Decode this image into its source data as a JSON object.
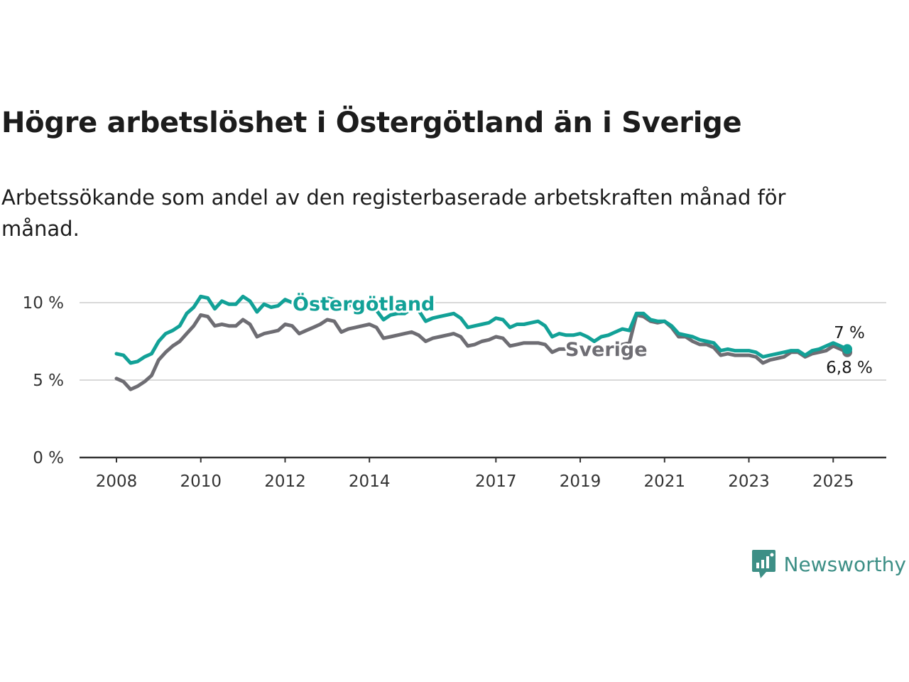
{
  "title": "Högre arbetslöshet i Östergötland än i Sverige",
  "subtitle": "Arbetssökande som andel av den registerbaserade arbetskraften månad för månad.",
  "brand": {
    "name": "Newsworthy",
    "icon": "newsworthy-logo-icon"
  },
  "colors": {
    "ostergotland": "#12a197",
    "sverige": "#6e6d73",
    "grid": "#d9d9d9",
    "axis": "#333333",
    "brand": "#3d8f86"
  },
  "chart_data": {
    "type": "line",
    "title": "Högre arbetslöshet i Östergötland än i Sverige",
    "subtitle": "Arbetssökande som andel av den registerbaserade arbetskraften månad för månad.",
    "xlabel": "",
    "ylabel": "",
    "y_unit": "%",
    "xlim": [
      "2008-01",
      "2025-06"
    ],
    "ylim": [
      0,
      10
    ],
    "y_ticks": [
      {
        "value": 0,
        "label": "0 %"
      },
      {
        "value": 5,
        "label": "5 %"
      },
      {
        "value": 10,
        "label": "10 %"
      }
    ],
    "x_ticks": [
      {
        "value": "2008-01",
        "label": "2008"
      },
      {
        "value": "2010-01",
        "label": "2010"
      },
      {
        "value": "2012-01",
        "label": "2012"
      },
      {
        "value": "2014-01",
        "label": "2014"
      },
      {
        "value": "2017-01",
        "label": "2017"
      },
      {
        "value": "2019-01",
        "label": "2019"
      },
      {
        "value": "2021-01",
        "label": "2021"
      },
      {
        "value": "2023-01",
        "label": "2023"
      },
      {
        "value": "2025-01",
        "label": "2025"
      }
    ],
    "grid": true,
    "legend": "inline labels",
    "series": [
      {
        "name": "Östergötland",
        "color": "#12a197",
        "end_label": "7 %",
        "points": [
          [
            "2008-01",
            6.7
          ],
          [
            "2008-03",
            6.6
          ],
          [
            "2008-05",
            6.1
          ],
          [
            "2008-07",
            6.2
          ],
          [
            "2008-09",
            6.5
          ],
          [
            "2008-11",
            6.7
          ],
          [
            "2009-01",
            7.5
          ],
          [
            "2009-03",
            8.0
          ],
          [
            "2009-05",
            8.2
          ],
          [
            "2009-07",
            8.5
          ],
          [
            "2009-09",
            9.3
          ],
          [
            "2009-11",
            9.7
          ],
          [
            "2010-01",
            10.4
          ],
          [
            "2010-03",
            10.3
          ],
          [
            "2010-05",
            9.6
          ],
          [
            "2010-07",
            10.1
          ],
          [
            "2010-09",
            9.9
          ],
          [
            "2010-11",
            9.9
          ],
          [
            "2011-01",
            10.4
          ],
          [
            "2011-03",
            10.1
          ],
          [
            "2011-05",
            9.4
          ],
          [
            "2011-07",
            9.9
          ],
          [
            "2011-09",
            9.7
          ],
          [
            "2011-11",
            9.8
          ],
          [
            "2012-01",
            10.2
          ],
          [
            "2012-03",
            10.0
          ],
          [
            "2012-05",
            9.6
          ],
          [
            "2012-07",
            9.7
          ],
          [
            "2012-09",
            9.9
          ],
          [
            "2012-11",
            10.0
          ],
          [
            "2013-01",
            10.3
          ],
          [
            "2013-03",
            10.2
          ],
          [
            "2013-05",
            9.6
          ],
          [
            "2013-07",
            9.8
          ],
          [
            "2013-09",
            9.9
          ],
          [
            "2013-11",
            9.8
          ],
          [
            "2014-01",
            9.9
          ],
          [
            "2014-03",
            9.5
          ],
          [
            "2014-05",
            8.9
          ],
          [
            "2014-07",
            9.2
          ],
          [
            "2014-09",
            9.3
          ],
          [
            "2014-11",
            9.3
          ],
          [
            "2015-01",
            9.6
          ],
          [
            "2015-03",
            9.5
          ],
          [
            "2015-05",
            8.8
          ],
          [
            "2015-07",
            9.0
          ],
          [
            "2015-09",
            9.1
          ],
          [
            "2015-11",
            9.2
          ],
          [
            "2016-01",
            9.3
          ],
          [
            "2016-03",
            9.0
          ],
          [
            "2016-05",
            8.4
          ],
          [
            "2016-07",
            8.5
          ],
          [
            "2016-09",
            8.6
          ],
          [
            "2016-11",
            8.7
          ],
          [
            "2017-01",
            9.0
          ],
          [
            "2017-03",
            8.9
          ],
          [
            "2017-05",
            8.4
          ],
          [
            "2017-07",
            8.6
          ],
          [
            "2017-09",
            8.6
          ],
          [
            "2017-11",
            8.7
          ],
          [
            "2018-01",
            8.8
          ],
          [
            "2018-03",
            8.5
          ],
          [
            "2018-05",
            7.8
          ],
          [
            "2018-07",
            8.0
          ],
          [
            "2018-09",
            7.9
          ],
          [
            "2018-11",
            7.9
          ],
          [
            "2019-01",
            8.0
          ],
          [
            "2019-03",
            7.8
          ],
          [
            "2019-05",
            7.5
          ],
          [
            "2019-07",
            7.8
          ],
          [
            "2019-09",
            7.9
          ],
          [
            "2019-11",
            8.1
          ],
          [
            "2020-01",
            8.3
          ],
          [
            "2020-03",
            8.2
          ],
          [
            "2020-05",
            9.3
          ],
          [
            "2020-07",
            9.3
          ],
          [
            "2020-09",
            8.9
          ],
          [
            "2020-11",
            8.8
          ],
          [
            "2021-01",
            8.8
          ],
          [
            "2021-03",
            8.5
          ],
          [
            "2021-05",
            8.0
          ],
          [
            "2021-07",
            7.9
          ],
          [
            "2021-09",
            7.8
          ],
          [
            "2021-11",
            7.6
          ],
          [
            "2022-01",
            7.5
          ],
          [
            "2022-03",
            7.4
          ],
          [
            "2022-05",
            6.9
          ],
          [
            "2022-07",
            7.0
          ],
          [
            "2022-09",
            6.9
          ],
          [
            "2022-11",
            6.9
          ],
          [
            "2023-01",
            6.9
          ],
          [
            "2023-03",
            6.8
          ],
          [
            "2023-05",
            6.5
          ],
          [
            "2023-07",
            6.6
          ],
          [
            "2023-09",
            6.7
          ],
          [
            "2023-11",
            6.8
          ],
          [
            "2024-01",
            6.9
          ],
          [
            "2024-03",
            6.9
          ],
          [
            "2024-05",
            6.6
          ],
          [
            "2024-07",
            6.9
          ],
          [
            "2024-09",
            7.0
          ],
          [
            "2024-11",
            7.2
          ],
          [
            "2025-01",
            7.4
          ],
          [
            "2025-03",
            7.2
          ],
          [
            "2025-05",
            7.0
          ]
        ]
      },
      {
        "name": "Sverige",
        "color": "#6e6d73",
        "end_label": "6,8 %",
        "points": [
          [
            "2008-01",
            5.1
          ],
          [
            "2008-03",
            4.9
          ],
          [
            "2008-05",
            4.4
          ],
          [
            "2008-07",
            4.6
          ],
          [
            "2008-09",
            4.9
          ],
          [
            "2008-11",
            5.3
          ],
          [
            "2009-01",
            6.3
          ],
          [
            "2009-03",
            6.8
          ],
          [
            "2009-05",
            7.2
          ],
          [
            "2009-07",
            7.5
          ],
          [
            "2009-09",
            8.0
          ],
          [
            "2009-11",
            8.5
          ],
          [
            "2010-01",
            9.2
          ],
          [
            "2010-03",
            9.1
          ],
          [
            "2010-05",
            8.5
          ],
          [
            "2010-07",
            8.6
          ],
          [
            "2010-09",
            8.5
          ],
          [
            "2010-11",
            8.5
          ],
          [
            "2011-01",
            8.9
          ],
          [
            "2011-03",
            8.6
          ],
          [
            "2011-05",
            7.8
          ],
          [
            "2011-07",
            8.0
          ],
          [
            "2011-09",
            8.1
          ],
          [
            "2011-11",
            8.2
          ],
          [
            "2012-01",
            8.6
          ],
          [
            "2012-03",
            8.5
          ],
          [
            "2012-05",
            8.0
          ],
          [
            "2012-07",
            8.2
          ],
          [
            "2012-09",
            8.4
          ],
          [
            "2012-11",
            8.6
          ],
          [
            "2013-01",
            8.9
          ],
          [
            "2013-03",
            8.8
          ],
          [
            "2013-05",
            8.1
          ],
          [
            "2013-07",
            8.3
          ],
          [
            "2013-09",
            8.4
          ],
          [
            "2013-11",
            8.5
          ],
          [
            "2014-01",
            8.6
          ],
          [
            "2014-03",
            8.4
          ],
          [
            "2014-05",
            7.7
          ],
          [
            "2014-07",
            7.8
          ],
          [
            "2014-09",
            7.9
          ],
          [
            "2014-11",
            8.0
          ],
          [
            "2015-01",
            8.1
          ],
          [
            "2015-03",
            7.9
          ],
          [
            "2015-05",
            7.5
          ],
          [
            "2015-07",
            7.7
          ],
          [
            "2015-09",
            7.8
          ],
          [
            "2015-11",
            7.9
          ],
          [
            "2016-01",
            8.0
          ],
          [
            "2016-03",
            7.8
          ],
          [
            "2016-05",
            7.2
          ],
          [
            "2016-07",
            7.3
          ],
          [
            "2016-09",
            7.5
          ],
          [
            "2016-11",
            7.6
          ],
          [
            "2017-01",
            7.8
          ],
          [
            "2017-03",
            7.7
          ],
          [
            "2017-05",
            7.2
          ],
          [
            "2017-07",
            7.3
          ],
          [
            "2017-09",
            7.4
          ],
          [
            "2017-11",
            7.4
          ],
          [
            "2018-01",
            7.4
          ],
          [
            "2018-03",
            7.3
          ],
          [
            "2018-05",
            6.8
          ],
          [
            "2018-07",
            7.0
          ],
          [
            "2019-09",
            7.0
          ],
          [
            "2019-11",
            7.2
          ],
          [
            "2020-01",
            7.3
          ],
          [
            "2020-03",
            7.4
          ],
          [
            "2020-05",
            9.2
          ],
          [
            "2020-07",
            9.1
          ],
          [
            "2020-09",
            8.8
          ],
          [
            "2020-11",
            8.7
          ],
          [
            "2021-01",
            8.8
          ],
          [
            "2021-03",
            8.4
          ],
          [
            "2021-05",
            7.8
          ],
          [
            "2021-07",
            7.8
          ],
          [
            "2021-09",
            7.5
          ],
          [
            "2021-11",
            7.3
          ],
          [
            "2022-01",
            7.3
          ],
          [
            "2022-03",
            7.1
          ],
          [
            "2022-05",
            6.6
          ],
          [
            "2022-07",
            6.7
          ],
          [
            "2022-09",
            6.6
          ],
          [
            "2022-11",
            6.6
          ],
          [
            "2023-01",
            6.6
          ],
          [
            "2023-03",
            6.5
          ],
          [
            "2023-05",
            6.1
          ],
          [
            "2023-07",
            6.3
          ],
          [
            "2023-09",
            6.4
          ],
          [
            "2023-11",
            6.5
          ],
          [
            "2024-01",
            6.8
          ],
          [
            "2024-03",
            6.8
          ],
          [
            "2024-05",
            6.5
          ],
          [
            "2024-07",
            6.7
          ],
          [
            "2024-09",
            6.8
          ],
          [
            "2024-11",
            6.9
          ],
          [
            "2025-01",
            7.2
          ],
          [
            "2025-03",
            7.0
          ],
          [
            "2025-05",
            6.8
          ]
        ]
      }
    ]
  }
}
